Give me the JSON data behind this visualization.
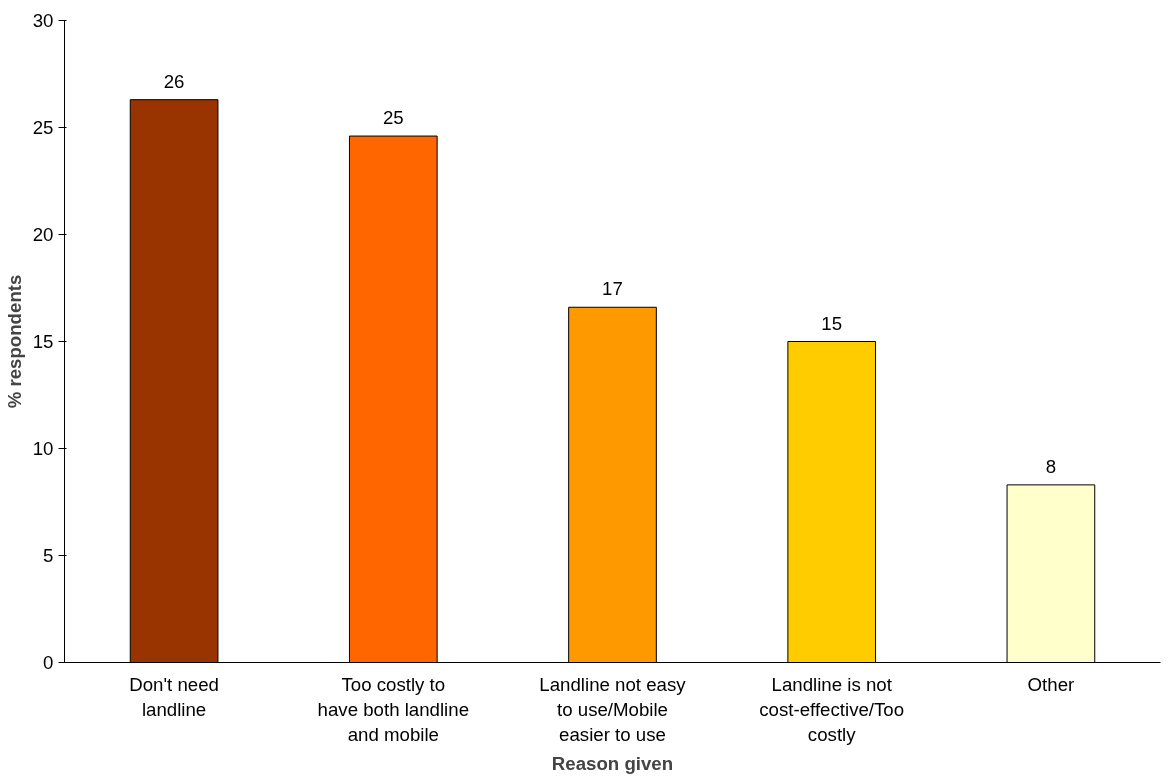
{
  "chart_data": {
    "type": "bar",
    "xlabel": "Reason given",
    "ylabel": "% respondents",
    "categories": [
      "Don't need\nlandline",
      "Too costly to\nhave both landline\nand mobile",
      "Landline not easy\nto use/Mobile\neasier to use",
      "Landline is not\ncost-effective/Too\ncostly",
      "Other"
    ],
    "values": [
      26.3,
      24.6,
      16.6,
      15,
      8.3
    ],
    "value_labels": [
      "26",
      "25",
      "17",
      "15",
      "8"
    ],
    "colors": [
      "#993300",
      "#ff6600",
      "#ff9900",
      "#ffcc00",
      "#ffffcc"
    ],
    "ylim": [
      0,
      30
    ],
    "yticks": [
      0,
      5,
      10,
      15,
      20,
      25,
      30
    ],
    "grid": false
  }
}
